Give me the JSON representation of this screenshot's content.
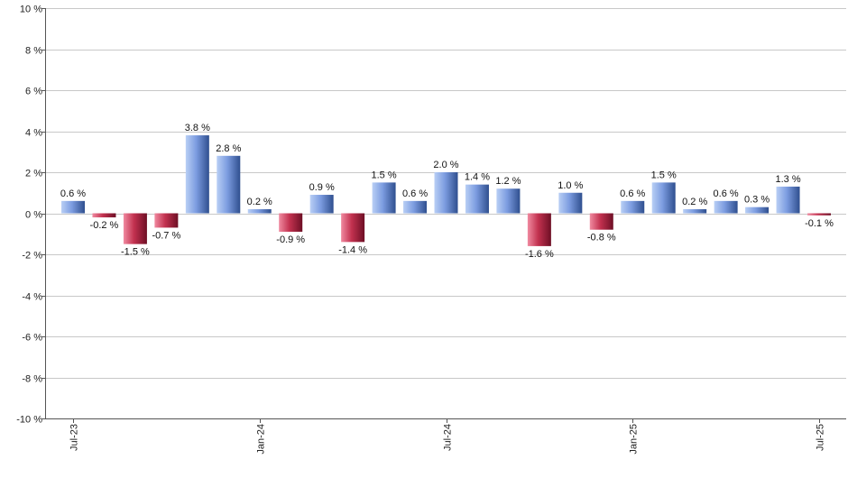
{
  "chart_data": {
    "type": "bar",
    "title": "",
    "xlabel": "",
    "ylabel": "",
    "ylim": [
      -10,
      10
    ],
    "y_ticks": [
      10,
      8,
      6,
      4,
      2,
      0,
      -2,
      -4,
      -6,
      -8,
      -10
    ],
    "y_tick_suffix": " %",
    "grid": true,
    "x_tick_labels": [
      {
        "label": "Jul-23",
        "index": 0
      },
      {
        "label": "Jan-24",
        "index": 6
      },
      {
        "label": "Jul-24",
        "index": 12
      },
      {
        "label": "Jan-25",
        "index": 18
      },
      {
        "label": "Jul-25",
        "index": 24
      }
    ],
    "values": [
      0.6,
      -0.2,
      -1.5,
      -0.7,
      3.8,
      2.8,
      0.2,
      -0.9,
      0.9,
      -1.4,
      1.5,
      0.6,
      2.0,
      1.4,
      1.2,
      -1.6,
      1.0,
      -0.8,
      0.6,
      1.5,
      0.2,
      0.6,
      0.3,
      1.3,
      -0.1
    ],
    "data_labels": [
      "0.6 %",
      "-0.2 %",
      "-1.5 %",
      "-0.7 %",
      "3.8 %",
      "2.8 %",
      "0.2 %",
      "-0.9 %",
      "0.9 %",
      "-1.4 %",
      "1.5 %",
      "0.6 %",
      "2.0 %",
      "1.4 %",
      "1.2 %",
      "-1.6 %",
      "1.0 %",
      "-0.8 %",
      "0.6 %",
      "1.5 %",
      "0.2 %",
      "0.6 %",
      "0.3 %",
      "1.3 %",
      "-0.1 %"
    ],
    "colors": {
      "positive_light": "#b9cff5",
      "positive_mid": "#7c9ce0",
      "positive_dark": "#2f4f8f",
      "negative_light": "#f08aa0",
      "negative_mid": "#c2314f",
      "negative_dark": "#6e0f25",
      "grid": "#c8c8c8",
      "axis": "#555555"
    }
  }
}
